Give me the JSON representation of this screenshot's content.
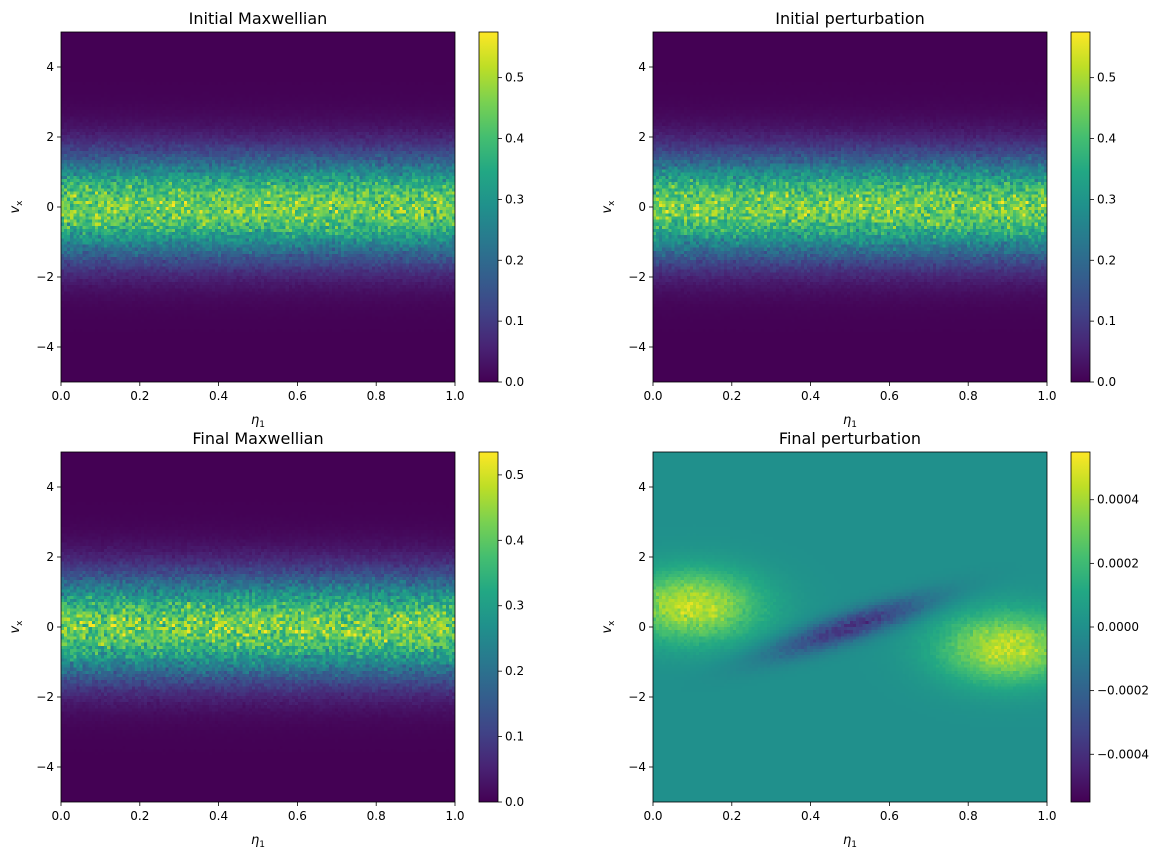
{
  "colormap": "viridis",
  "chart_data": [
    {
      "type": "heatmap",
      "title": "Initial Maxwellian",
      "xlabel_main": "η",
      "xlabel_sub": "1",
      "ylabel_main": "v",
      "ylabel_sub": "x",
      "xlim": [
        0,
        1
      ],
      "ylim": [
        -5,
        5
      ],
      "xticks": [
        "0.0",
        "0.2",
        "0.4",
        "0.6",
        "0.8",
        "1.0"
      ],
      "yticks": [
        "-4",
        "-2",
        "0",
        "2",
        "4"
      ],
      "field": "maxwellian",
      "peak": 0.45,
      "noise": 0.22,
      "vmin": 0,
      "vmax": 0.575,
      "colorbar_ticks": [
        "0.0",
        "0.1",
        "0.2",
        "0.3",
        "0.4",
        "0.5"
      ],
      "colorbar_values": [
        0,
        0.1,
        0.2,
        0.3,
        0.4,
        0.5
      ]
    },
    {
      "type": "heatmap",
      "title": "Initial perturbation",
      "xlabel_main": "η",
      "xlabel_sub": "1",
      "ylabel_main": "v",
      "ylabel_sub": "x",
      "xlim": [
        0,
        1
      ],
      "ylim": [
        -5,
        5
      ],
      "xticks": [
        "0.0",
        "0.2",
        "0.4",
        "0.6",
        "0.8",
        "1.0"
      ],
      "yticks": [
        "-4",
        "-2",
        "0",
        "2",
        "4"
      ],
      "field": "maxwellian",
      "peak": 0.45,
      "noise": 0.22,
      "vmin": 0,
      "vmax": 0.575,
      "colorbar_ticks": [
        "0.0",
        "0.1",
        "0.2",
        "0.3",
        "0.4",
        "0.5"
      ],
      "colorbar_values": [
        0,
        0.1,
        0.2,
        0.3,
        0.4,
        0.5
      ]
    },
    {
      "type": "heatmap",
      "title": "Final Maxwellian",
      "xlabel_main": "η",
      "xlabel_sub": "1",
      "ylabel_main": "v",
      "ylabel_sub": "x",
      "xlim": [
        0,
        1
      ],
      "ylim": [
        -5,
        5
      ],
      "xticks": [
        "0.0",
        "0.2",
        "0.4",
        "0.6",
        "0.8",
        "1.0"
      ],
      "yticks": [
        "-4",
        "-2",
        "0",
        "2",
        "4"
      ],
      "field": "maxwellian",
      "peak": 0.42,
      "noise": 0.24,
      "vmin": 0,
      "vmax": 0.535,
      "colorbar_ticks": [
        "0.0",
        "0.1",
        "0.2",
        "0.3",
        "0.4",
        "0.5"
      ],
      "colorbar_values": [
        0,
        0.1,
        0.2,
        0.3,
        0.4,
        0.5
      ]
    },
    {
      "type": "heatmap",
      "title": "Final perturbation",
      "xlabel_main": "η",
      "xlabel_sub": "1",
      "ylabel_main": "v",
      "ylabel_sub": "x",
      "xlim": [
        0,
        1
      ],
      "ylim": [
        -5,
        5
      ],
      "xticks": [
        "0.0",
        "0.2",
        "0.4",
        "0.6",
        "0.8",
        "1.0"
      ],
      "yticks": [
        "-4",
        "-2",
        "0",
        "2",
        "4"
      ],
      "field": "perturbation",
      "amplitude": 0.00045,
      "noise": 0.18,
      "vmin": -0.00055,
      "vmax": 0.00055,
      "colorbar_ticks": [
        "−0.0004",
        "−0.0002",
        "0.0000",
        "0.0002",
        "0.0004"
      ],
      "colorbar_values": [
        -0.0004,
        -0.0002,
        0,
        0.0002,
        0.0004
      ]
    }
  ]
}
